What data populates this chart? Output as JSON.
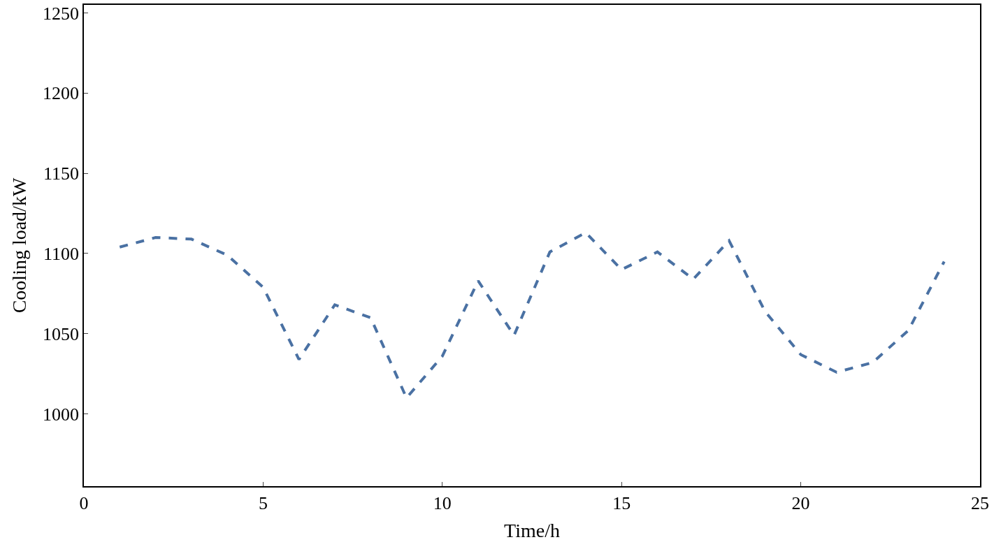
{
  "chart_data": {
    "type": "line",
    "xlabel": "Time/h",
    "ylabel": "Cooling load/kW",
    "x": [
      1,
      2,
      3,
      4,
      5,
      6,
      7,
      8,
      9,
      10,
      11,
      12,
      13,
      14,
      15,
      16,
      17,
      18,
      19,
      20,
      21,
      22,
      23,
      24
    ],
    "series": [
      {
        "color": "#4a71a3",
        "values": [
          1104,
          1110,
          1109,
          1099,
          1079,
          1034,
          1068,
          1060,
          1010,
          1036,
          1083,
          1049,
          1101,
          1113,
          1090,
          1101,
          1084,
          1108,
          1064,
          1037,
          1026,
          1032,
          1052,
          1095
        ]
      }
    ],
    "xlim": [
      0,
      25
    ],
    "xticks": [
      0,
      5,
      10,
      15,
      20,
      25
    ],
    "ylim": [
      955,
      1255
    ],
    "yticks": [
      1000,
      1050,
      1100,
      1150,
      1200,
      1250
    ],
    "legend": false,
    "line_style": "dashed",
    "marker": "none"
  }
}
